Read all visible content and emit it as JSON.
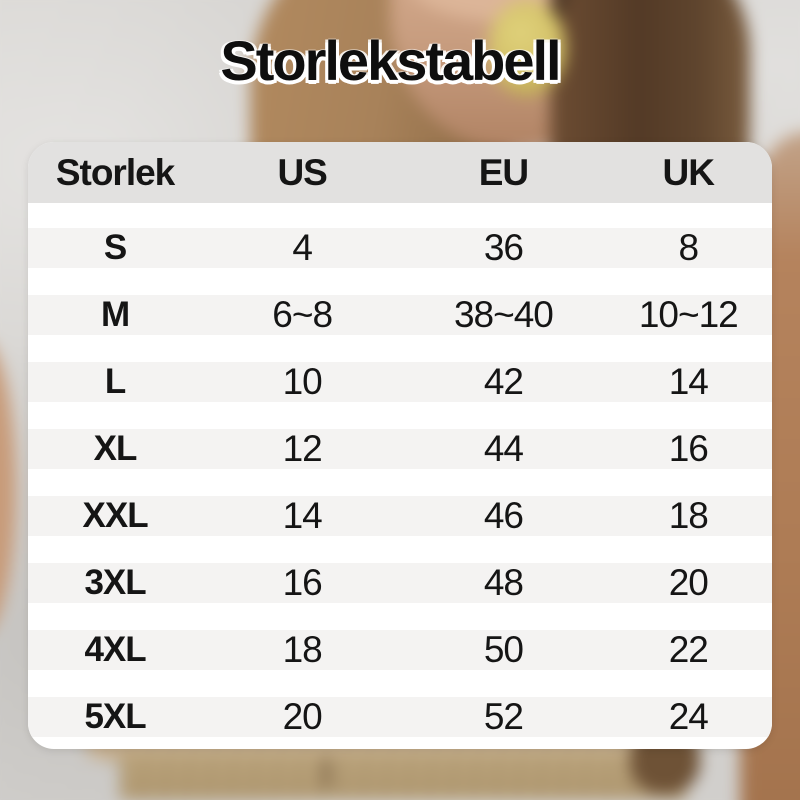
{
  "title": "Storlekstabell",
  "table": {
    "columns": [
      {
        "label": "Storlek"
      },
      {
        "label": "US"
      },
      {
        "label": "EU"
      },
      {
        "label": "UK"
      }
    ],
    "rows": [
      {
        "size": "S",
        "us": "4",
        "eu": "36",
        "uk": "8"
      },
      {
        "size": "M",
        "us": "6~8",
        "eu": "38~40",
        "uk": "10~12"
      },
      {
        "size": "L",
        "us": "10",
        "eu": "42",
        "uk": "14"
      },
      {
        "size": "XL",
        "us": "12",
        "eu": "44",
        "uk": "16"
      },
      {
        "size": "XXL",
        "us": "14",
        "eu": "46",
        "uk": "18"
      },
      {
        "size": "3XL",
        "us": "16",
        "eu": "48",
        "uk": "20"
      },
      {
        "size": "4XL",
        "us": "18",
        "eu": "50",
        "uk": "22"
      },
      {
        "size": "5XL",
        "us": "20",
        "eu": "52",
        "uk": "24"
      }
    ]
  },
  "colors": {
    "panel_bg": "#ffffff",
    "header_bg": "#e2e1e0",
    "row_stripe": "#f4f3f2",
    "title_text": "#0e0e0e",
    "body_text": "#151515",
    "earring": "#d2bf66",
    "garment": "#cbb392",
    "pants": "#b29a72"
  }
}
